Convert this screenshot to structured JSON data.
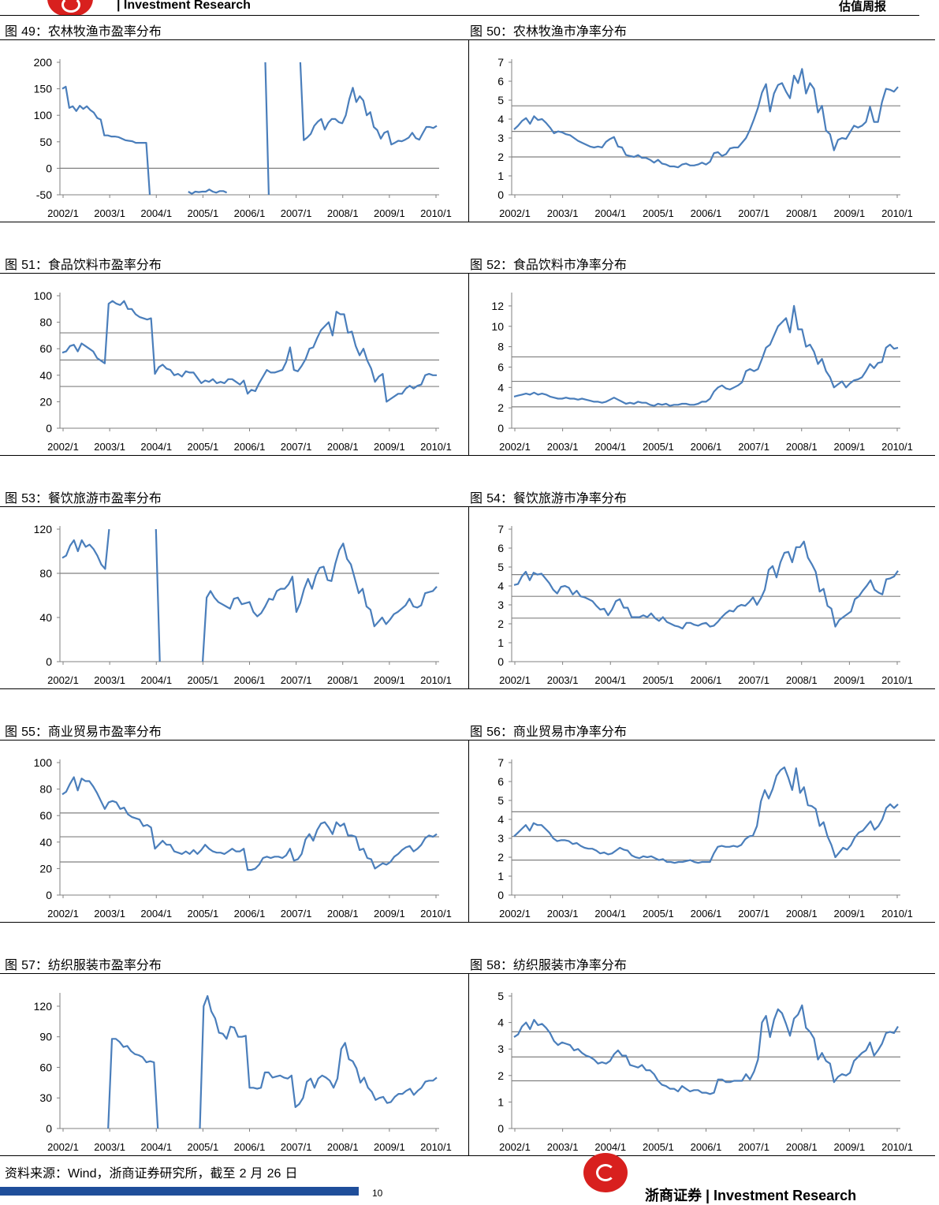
{
  "header": {
    "brand": "| Investment Research",
    "report": "估值周报"
  },
  "footer": {
    "source_prefix": "资料来源：",
    "source_wind": "Wind",
    "source_mid": "，浙商证券研究所，截至 ",
    "source_month": "2",
    "source_mid2": " 月 ",
    "source_day": "26",
    "source_end": " 日",
    "page_number": "10",
    "company_cn": "浙商证券",
    "separator": " | ",
    "company_en": "Investment Research"
  },
  "chart_data": [
    {
      "id": "fig49",
      "title_prefix": "图 ",
      "number": "49",
      "title_text": "：农林牧渔市盈率分布",
      "type": "line",
      "x_labels": [
        "2002/1",
        "2003/1",
        "2004/1",
        "2005/1",
        "2006/1",
        "2007/1",
        "2008/1",
        "2009/1",
        "2010/1"
      ],
      "ylim": [
        -50,
        200
      ],
      "yticks": [
        -50,
        0,
        50,
        100,
        150,
        200
      ],
      "neg_color": "#ff0000",
      "ref_lines": [
        0
      ],
      "values": [
        150,
        154,
        114,
        117,
        108,
        118,
        112,
        117,
        110,
        105,
        95,
        92,
        62,
        62,
        60,
        60,
        59,
        56,
        53,
        52,
        51,
        48,
        48,
        48,
        48,
        -50,
        null,
        null,
        null,
        null,
        null,
        null,
        null,
        null,
        null,
        null,
        -44,
        -48,
        -44,
        -45,
        -44,
        -44,
        -40,
        -44,
        -46,
        -43,
        -43,
        -46,
        null,
        null,
        null,
        null,
        null,
        null,
        null,
        null,
        null,
        null,
        200,
        -50,
        null,
        null,
        null,
        null,
        null,
        null,
        null,
        null,
        200,
        53,
        58,
        65,
        80,
        88,
        93,
        73,
        86,
        93,
        93,
        87,
        85,
        100,
        130,
        152,
        125,
        136,
        128,
        100,
        106,
        78,
        72,
        56,
        67,
        70,
        45,
        48,
        52,
        51,
        54,
        58,
        67,
        57,
        54,
        66,
        78,
        78,
        76,
        80
      ]
    },
    {
      "id": "fig50",
      "title_prefix": "图 ",
      "number": "50",
      "title_text": "：农林牧渔市净率分布",
      "type": "line",
      "x_labels": [
        "2002/1",
        "2003/1",
        "2004/1",
        "2005/1",
        "2006/1",
        "2007/1",
        "2008/1",
        "2009/1",
        "2010/1"
      ],
      "ylim": [
        0,
        7
      ],
      "yticks": [
        0,
        1,
        2,
        3,
        4,
        5,
        6,
        7
      ],
      "ref_lines": [
        2,
        3.35,
        4.7
      ],
      "values": [
        3.45,
        3.65,
        3.9,
        4.05,
        3.75,
        4.15,
        3.95,
        4.0,
        3.8,
        3.55,
        3.25,
        3.35,
        3.3,
        3.2,
        3.15,
        3.0,
        2.85,
        2.75,
        2.65,
        2.55,
        2.5,
        2.55,
        2.5,
        2.8,
        2.95,
        3.05,
        2.55,
        2.5,
        2.1,
        2.05,
        2.0,
        2.1,
        1.95,
        1.95,
        1.85,
        1.7,
        1.85,
        1.65,
        1.6,
        1.5,
        1.5,
        1.45,
        1.6,
        1.65,
        1.55,
        1.55,
        1.6,
        1.7,
        1.6,
        1.75,
        2.2,
        2.25,
        2.05,
        2.15,
        2.45,
        2.5,
        2.5,
        2.75,
        3.0,
        3.45,
        4.0,
        4.6,
        5.4,
        5.85,
        4.4,
        5.35,
        5.8,
        5.9,
        5.45,
        5.1,
        6.3,
        5.9,
        6.65,
        5.35,
        5.9,
        5.6,
        4.35,
        4.7,
        3.4,
        3.2,
        2.35,
        2.9,
        3.0,
        2.95,
        3.3,
        3.65,
        3.55,
        3.65,
        3.85,
        4.65,
        3.85,
        3.85,
        4.9,
        5.6,
        5.55,
        5.45,
        5.7
      ]
    },
    {
      "id": "fig51",
      "title_prefix": "图 ",
      "number": "51",
      "title_text": "：食品饮料市盈率分布",
      "type": "line",
      "x_labels": [
        "2002/1",
        "2003/1",
        "2004/1",
        "2005/1",
        "2006/1",
        "2007/1",
        "2008/1",
        "2009/1",
        "2010/1"
      ],
      "ylim": [
        0,
        100
      ],
      "yticks": [
        0,
        20,
        40,
        60,
        80,
        100
      ],
      "ref_lines": [
        31.5,
        51.5,
        72
      ],
      "values": [
        57,
        58,
        62,
        63,
        58,
        64,
        62,
        60,
        58,
        53,
        51,
        49,
        94,
        96,
        94,
        93,
        96,
        90,
        90,
        86,
        84,
        83,
        82,
        83,
        41,
        46,
        48,
        45,
        44,
        40,
        41,
        39,
        43,
        42,
        42,
        38,
        34,
        36,
        35,
        37,
        34,
        35,
        34,
        37,
        37,
        35,
        33,
        36,
        26,
        29,
        28,
        34,
        39,
        44,
        42,
        42,
        43,
        44,
        50,
        61,
        44,
        43,
        47,
        52,
        60,
        61,
        68,
        74,
        77,
        80,
        70,
        88,
        86,
        86,
        72,
        73,
        62,
        55,
        60,
        51,
        45,
        35,
        39,
        41,
        20,
        22,
        24,
        26,
        26,
        30,
        32,
        30,
        32,
        33,
        40,
        41,
        40,
        40
      ]
    },
    {
      "id": "fig52",
      "title_prefix": "图 ",
      "number": "52",
      "title_text": "：食品饮料市净率分布",
      "type": "line",
      "x_labels": [
        "2002/1",
        "2003/1",
        "2004/1",
        "2005/1",
        "2006/1",
        "2007/1",
        "2008/1",
        "2009/1",
        "2010/1"
      ],
      "ylim": [
        0,
        13
      ],
      "yticks": [
        0,
        2,
        4,
        6,
        8,
        10,
        12
      ],
      "ref_lines": [
        2.1,
        4.6,
        7.0
      ],
      "values": [
        3.1,
        3.2,
        3.3,
        3.4,
        3.3,
        3.5,
        3.3,
        3.4,
        3.3,
        3.1,
        3.0,
        2.9,
        2.9,
        3.0,
        2.9,
        2.9,
        2.8,
        2.9,
        2.8,
        2.7,
        2.6,
        2.6,
        2.5,
        2.6,
        2.8,
        3.0,
        2.8,
        2.6,
        2.4,
        2.5,
        2.4,
        2.6,
        2.5,
        2.5,
        2.3,
        2.2,
        2.4,
        2.3,
        2.4,
        2.2,
        2.3,
        2.3,
        2.4,
        2.4,
        2.3,
        2.3,
        2.4,
        2.6,
        2.6,
        2.9,
        3.6,
        4.0,
        4.2,
        3.9,
        3.8,
        4.0,
        4.2,
        4.5,
        5.6,
        5.8,
        5.6,
        5.8,
        6.8,
        7.9,
        8.2,
        9.1,
        10.0,
        10.4,
        10.8,
        9.4,
        12.0,
        9.7,
        9.7,
        8.0,
        8.2,
        7.5,
        6.3,
        6.8,
        5.6,
        5.0,
        4.0,
        4.3,
        4.6,
        4.0,
        4.4,
        4.7,
        4.8,
        5.0,
        5.6,
        6.3,
        5.9,
        6.4,
        6.5,
        7.9,
        8.2,
        7.8,
        7.9
      ]
    },
    {
      "id": "fig53",
      "title_prefix": "图 ",
      "number": "53",
      "title_text": "：餐饮旅游市盈率分布",
      "type": "line",
      "x_labels": [
        "2002/1",
        "2003/1",
        "2004/1",
        "2005/1",
        "2006/1",
        "2007/1",
        "2008/1",
        "2009/1",
        "2010/1"
      ],
      "ylim": [
        0,
        120
      ],
      "yticks": [
        0,
        40,
        80,
        120
      ],
      "ref_lines": [
        80
      ],
      "values": [
        94,
        96,
        105,
        110,
        100,
        110,
        104,
        106,
        102,
        96,
        88,
        84,
        120,
        null,
        null,
        null,
        null,
        null,
        null,
        null,
        null,
        null,
        null,
        null,
        120,
        0,
        null,
        null,
        null,
        null,
        null,
        null,
        null,
        null,
        null,
        null,
        0,
        58,
        64,
        58,
        54,
        52,
        50,
        48,
        57,
        58,
        52,
        53,
        54,
        45,
        41,
        44,
        50,
        57,
        56,
        64,
        66,
        66,
        70,
        77,
        45,
        53,
        66,
        75,
        66,
        78,
        85,
        86,
        74,
        73,
        89,
        101,
        107,
        93,
        88,
        75,
        62,
        66,
        50,
        47,
        32,
        36,
        40,
        34,
        38,
        43,
        45,
        48,
        51,
        57,
        50,
        49,
        51,
        62,
        63,
        64,
        68
      ]
    },
    {
      "id": "fig54",
      "title_prefix": "图 ",
      "number": "54",
      "title_text": "：餐饮旅游市净率分布",
      "type": "line",
      "x_labels": [
        "2002/1",
        "2003/1",
        "2004/1",
        "2005/1",
        "2006/1",
        "2007/1",
        "2008/1",
        "2009/1",
        "2010/1"
      ],
      "ylim": [
        0,
        7
      ],
      "yticks": [
        0,
        1,
        2,
        3,
        4,
        5,
        6,
        7
      ],
      "ref_lines": [
        2.3,
        3.45,
        4.6
      ],
      "values": [
        4.05,
        4.1,
        4.5,
        4.75,
        4.3,
        4.7,
        4.6,
        4.65,
        4.4,
        4.15,
        3.8,
        3.6,
        3.95,
        4.0,
        3.9,
        3.55,
        3.75,
        3.45,
        3.4,
        3.3,
        3.2,
        2.95,
        2.75,
        2.8,
        2.45,
        2.75,
        3.2,
        3.3,
        2.85,
        2.85,
        2.35,
        2.35,
        2.35,
        2.45,
        2.35,
        2.55,
        2.3,
        2.15,
        2.35,
        2.1,
        2.0,
        1.9,
        1.85,
        1.75,
        2.05,
        2.05,
        1.95,
        1.9,
        2.0,
        2.05,
        1.85,
        1.9,
        2.1,
        2.35,
        2.55,
        2.7,
        2.65,
        2.9,
        3.0,
        2.95,
        3.15,
        3.4,
        3.0,
        3.35,
        3.8,
        4.85,
        5.05,
        4.45,
        5.25,
        5.75,
        5.8,
        5.25,
        6.05,
        6.05,
        6.35,
        5.5,
        5.15,
        4.75,
        3.7,
        3.85,
        2.95,
        2.8,
        1.85,
        2.2,
        2.35,
        2.5,
        2.65,
        3.3,
        3.45,
        3.75,
        4.0,
        4.3,
        3.8,
        3.65,
        3.55,
        4.35,
        4.4,
        4.5,
        4.8
      ]
    },
    {
      "id": "fig55",
      "title_prefix": "图 ",
      "number": "55",
      "title_text": "：商业贸易市盈率分布",
      "type": "line",
      "x_labels": [
        "2002/1",
        "2003/1",
        "2004/1",
        "2005/1",
        "2006/1",
        "2007/1",
        "2008/1",
        "2009/1",
        "2010/1"
      ],
      "ylim": [
        0,
        100
      ],
      "yticks": [
        0,
        20,
        40,
        60,
        80,
        100
      ],
      "ref_lines": [
        25,
        44,
        62
      ],
      "values": [
        76,
        78,
        84,
        89,
        79,
        88,
        86,
        86,
        82,
        77,
        71,
        65,
        70,
        71,
        70,
        65,
        66,
        61,
        59,
        58,
        57,
        52,
        53,
        51,
        35,
        38,
        41,
        38,
        38,
        33,
        32,
        31,
        33,
        31,
        34,
        31,
        34,
        38,
        35,
        33,
        32,
        32,
        31,
        33,
        35,
        33,
        33,
        35,
        19,
        19,
        20,
        23,
        28,
        29,
        28,
        29,
        29,
        28,
        30,
        35,
        26,
        27,
        31,
        42,
        46,
        41,
        49,
        54,
        55,
        51,
        46,
        55,
        52,
        54,
        45,
        45,
        44,
        34,
        35,
        28,
        27,
        20,
        22,
        24,
        23,
        25,
        29,
        31,
        34,
        36,
        37,
        33,
        35,
        38,
        43,
        45,
        44,
        46
      ]
    },
    {
      "id": "fig56",
      "title_prefix": "图 ",
      "number": "56",
      "title_text": "：商业贸易市净率分布",
      "type": "line",
      "x_labels": [
        "2002/1",
        "2003/1",
        "2004/1",
        "2005/1",
        "2006/1",
        "2007/1",
        "2008/1",
        "2009/1",
        "2010/1"
      ],
      "ylim": [
        0,
        7
      ],
      "yticks": [
        0,
        1,
        2,
        3,
        4,
        5,
        6,
        7
      ],
      "ref_lines": [
        1.85,
        3.1,
        4.4
      ],
      "values": [
        3.1,
        3.3,
        3.5,
        3.7,
        3.4,
        3.8,
        3.7,
        3.7,
        3.5,
        3.3,
        3.0,
        2.85,
        2.9,
        2.9,
        2.85,
        2.7,
        2.75,
        2.6,
        2.5,
        2.45,
        2.45,
        2.35,
        2.2,
        2.25,
        2.15,
        2.2,
        2.35,
        2.5,
        2.4,
        2.35,
        2.1,
        2.0,
        1.95,
        2.05,
        2.0,
        2.05,
        1.95,
        1.85,
        1.9,
        1.75,
        1.75,
        1.7,
        1.75,
        1.75,
        1.8,
        1.85,
        1.75,
        1.7,
        1.75,
        1.75,
        1.75,
        2.2,
        2.55,
        2.6,
        2.55,
        2.55,
        2.6,
        2.55,
        2.65,
        2.95,
        3.1,
        3.15,
        3.65,
        4.95,
        5.55,
        5.1,
        5.6,
        6.3,
        6.6,
        6.75,
        6.2,
        5.55,
        6.7,
        5.4,
        5.7,
        4.75,
        4.7,
        4.55,
        3.65,
        3.85,
        3.1,
        2.65,
        2.0,
        2.25,
        2.5,
        2.4,
        2.65,
        3.05,
        3.3,
        3.4,
        3.65,
        3.9,
        3.45,
        3.65,
        4.0,
        4.6,
        4.8,
        4.6,
        4.8
      ]
    },
    {
      "id": "fig57",
      "title_prefix": "图 ",
      "number": "57",
      "title_text": "：纺织服装市盈率分布",
      "type": "line",
      "x_labels": [
        "2002/1",
        "2003/1",
        "2004/1",
        "2005/1",
        "2006/1",
        "2007/1",
        "2008/1",
        "2009/1",
        "2010/1"
      ],
      "ylim": [
        0,
        130
      ],
      "yticks": [
        0,
        30,
        60,
        90,
        120
      ],
      "ref_lines": [],
      "values": [
        null,
        null,
        null,
        null,
        null,
        null,
        null,
        null,
        null,
        null,
        null,
        null,
        0,
        88,
        88,
        85,
        80,
        81,
        76,
        73,
        72,
        70,
        65,
        66,
        65,
        0,
        null,
        null,
        null,
        null,
        null,
        null,
        null,
        null,
        null,
        null,
        0,
        120,
        130,
        115,
        108,
        94,
        93,
        88,
        100,
        99,
        90,
        90,
        91,
        40,
        40,
        39,
        40,
        55,
        55,
        50,
        51,
        52,
        50,
        49,
        52,
        21,
        24,
        30,
        46,
        49,
        40,
        49,
        52,
        50,
        47,
        40,
        49,
        78,
        84,
        68,
        66,
        59,
        45,
        50,
        40,
        36,
        28,
        30,
        31,
        25,
        26,
        31,
        34,
        34,
        37,
        39,
        33,
        37,
        40,
        46,
        47,
        47,
        50
      ]
    },
    {
      "id": "fig58",
      "title_prefix": "图 ",
      "number": "58",
      "title_text": "：纺织服装市净率分布",
      "type": "line",
      "x_labels": [
        "2002/1",
        "2003/1",
        "2004/1",
        "2005/1",
        "2006/1",
        "2007/1",
        "2008/1",
        "2009/1",
        "2010/1"
      ],
      "ylim": [
        0,
        5
      ],
      "yticks": [
        0,
        1,
        2,
        3,
        4,
        5
      ],
      "ref_lines": [
        1.8,
        2.7,
        3.65
      ],
      "values": [
        3.45,
        3.55,
        3.85,
        4.0,
        3.75,
        4.1,
        3.9,
        3.95,
        3.8,
        3.6,
        3.3,
        3.15,
        3.25,
        3.2,
        3.15,
        2.95,
        3.0,
        2.85,
        2.75,
        2.7,
        2.6,
        2.45,
        2.5,
        2.45,
        2.55,
        2.8,
        2.95,
        2.75,
        2.75,
        2.4,
        2.35,
        2.3,
        2.4,
        2.2,
        2.2,
        2.05,
        1.8,
        1.65,
        1.6,
        1.5,
        1.5,
        1.4,
        1.6,
        1.5,
        1.4,
        1.45,
        1.45,
        1.35,
        1.35,
        1.3,
        1.35,
        1.85,
        1.85,
        1.75,
        1.75,
        1.8,
        1.8,
        1.8,
        2.05,
        1.85,
        2.15,
        2.6,
        4.0,
        4.25,
        3.45,
        4.1,
        4.5,
        4.35,
        3.95,
        3.5,
        4.15,
        4.3,
        4.65,
        3.8,
        3.65,
        3.4,
        2.6,
        2.85,
        2.55,
        2.45,
        1.75,
        1.95,
        2.05,
        2.0,
        2.1,
        2.55,
        2.7,
        2.85,
        2.95,
        3.25,
        2.75,
        2.95,
        3.2,
        3.6,
        3.65,
        3.6,
        3.85
      ]
    }
  ]
}
